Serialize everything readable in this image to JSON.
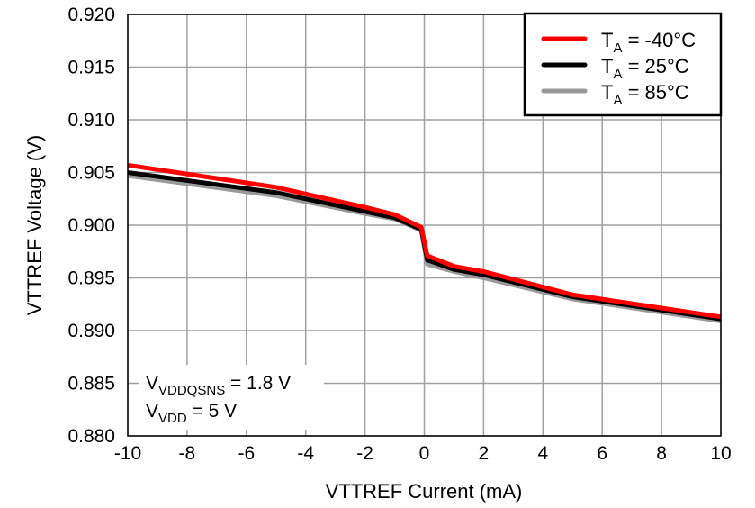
{
  "chart_data": {
    "type": "line",
    "title": "",
    "xlabel": "VTTREF Current (mA)",
    "ylabel": "VTTREF Voltage (V)",
    "xlim": [
      -10,
      10
    ],
    "ylim": [
      0.88,
      0.92
    ],
    "xticks": [
      "-10",
      "-8",
      "-6",
      "-4",
      "-2",
      "0",
      "2",
      "4",
      "6",
      "8",
      "10"
    ],
    "yticks": [
      "0.880",
      "0.885",
      "0.890",
      "0.895",
      "0.900",
      "0.905",
      "0.910",
      "0.915",
      "0.920"
    ],
    "grid": true,
    "legend_position": "top-right",
    "annotations": [
      {
        "main": "V",
        "sub": "VDDQSNS",
        "rest": " = 1.8 V"
      },
      {
        "main": "V",
        "sub": "VDD",
        "rest": " = 5 V"
      }
    ],
    "series": [
      {
        "name": "T_A = -40°C",
        "legend_main": "T",
        "legend_sub": "A",
        "legend_rest": " = -40°C",
        "color": "#ff0000",
        "x": [
          -10,
          -5,
          -2,
          -1,
          -0.1,
          0.1,
          1,
          2,
          5,
          10
        ],
        "y": [
          0.9057,
          0.9036,
          0.9017,
          0.901,
          0.8998,
          0.8971,
          0.8961,
          0.8956,
          0.8934,
          0.8913
        ]
      },
      {
        "name": "T_A = 25°C",
        "legend_main": "T",
        "legend_sub": "A",
        "legend_rest": " = 25°C",
        "color": "#000000",
        "x": [
          -10,
          -5,
          -2,
          -1,
          -0.1,
          0.1,
          1,
          2,
          5,
          10
        ],
        "y": [
          0.905,
          0.9031,
          0.9013,
          0.9007,
          0.8996,
          0.8967,
          0.8958,
          0.8953,
          0.8932,
          0.8911
        ]
      },
      {
        "name": "T_A = 85°C",
        "legend_main": "T",
        "legend_sub": "A",
        "legend_rest": " = 85°C",
        "color": "#999999",
        "x": [
          -10,
          -5,
          -2,
          -1,
          -0.1,
          0.1,
          1,
          2,
          5,
          10
        ],
        "y": [
          0.9047,
          0.9028,
          0.9011,
          0.9006,
          0.8995,
          0.8963,
          0.8956,
          0.895,
          0.893,
          0.8909
        ]
      }
    ]
  }
}
